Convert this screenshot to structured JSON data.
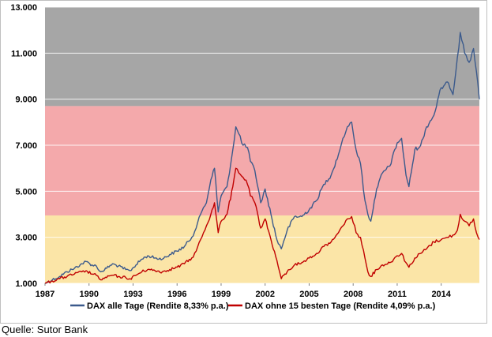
{
  "source_note": "Quelle: Sutor Bank",
  "colors": {
    "band_top": "#a6a6a6",
    "band_middle": "#f4a9ab",
    "band_bottom": "#fbe5a7",
    "series_all_days": "#3b5a8c",
    "series_without_best": "#c00000",
    "gridline": "#ffffff"
  },
  "chart_data": {
    "type": "line",
    "title": "",
    "xlabel": "",
    "ylabel": "",
    "xlim": [
      1987,
      2016.6
    ],
    "ylim": [
      1000,
      13000
    ],
    "x_ticks": [
      "1987",
      "1990",
      "1993",
      "1996",
      "1999",
      "2002",
      "2005",
      "2008",
      "2011",
      "2014"
    ],
    "y_ticks": [
      "1.000",
      "3.000",
      "5.000",
      "7.000",
      "9.000",
      "11.000",
      "13.000"
    ],
    "background_bands": [
      {
        "from": 8700,
        "to": 13000,
        "color": "#a6a6a6"
      },
      {
        "from": 3950,
        "to": 8700,
        "color": "#f4a9ab"
      },
      {
        "from": 1000,
        "to": 3950,
        "color": "#fbe5a7"
      }
    ],
    "grid": true,
    "legend_position": "bottom",
    "series": [
      {
        "name": "DAX alle Tage (Rendite 8,33% p.a.)",
        "color": "#3b5a8c",
        "x": [
          1987.0,
          1987.5,
          1988.0,
          1988.5,
          1989.0,
          1989.5,
          1989.8,
          1990.2,
          1990.5,
          1990.8,
          1991.2,
          1991.6,
          1992.0,
          1992.5,
          1992.8,
          1993.2,
          1993.6,
          1994.0,
          1994.5,
          1995.0,
          1995.5,
          1996.0,
          1996.5,
          1997.0,
          1997.3,
          1997.6,
          1997.8,
          1998.0,
          1998.3,
          1998.55,
          1998.8,
          1999.0,
          1999.4,
          1999.8,
          2000.0,
          2000.2,
          2000.5,
          2000.8,
          2001.0,
          2001.3,
          2001.7,
          2002.0,
          2002.4,
          2002.8,
          2003.1,
          2003.5,
          2004.0,
          2004.5,
          2005.0,
          2005.5,
          2006.0,
          2006.5,
          2007.0,
          2007.3,
          2007.6,
          2007.9,
          2008.2,
          2008.5,
          2008.8,
          2009.0,
          2009.2,
          2009.6,
          2010.0,
          2010.5,
          2011.0,
          2011.3,
          2011.6,
          2011.8,
          2012.2,
          2012.6,
          2013.0,
          2013.5,
          2014.0,
          2014.5,
          2014.8,
          2015.1,
          2015.3,
          2015.6,
          2015.9,
          2016.2,
          2016.4,
          2016.6
        ],
        "y": [
          1000,
          1150,
          1300,
          1500,
          1650,
          1850,
          1950,
          1800,
          1750,
          1500,
          1650,
          1850,
          1750,
          1600,
          1550,
          1800,
          2050,
          2200,
          2100,
          2050,
          2250,
          2400,
          2600,
          3000,
          3400,
          4000,
          4300,
          4500,
          5500,
          6000,
          4100,
          4800,
          5200,
          6800,
          7800,
          7500,
          7000,
          6900,
          6300,
          5900,
          4500,
          5100,
          4000,
          2900,
          2500,
          3300,
          3900,
          3900,
          4200,
          4600,
          5300,
          5700,
          6600,
          7300,
          7800,
          8000,
          6800,
          6200,
          4600,
          4000,
          3700,
          5100,
          5800,
          6100,
          7100,
          7300,
          5700,
          5200,
          6800,
          7000,
          7800,
          8300,
          9500,
          9700,
          9200,
          10800,
          11900,
          11000,
          10600,
          11200,
          10200,
          9000
        ]
      },
      {
        "name": "DAX ohne 15 besten Tage (Rendite 4,09% p.a.)",
        "color": "#c00000",
        "x": [
          1987.0,
          1987.5,
          1988.0,
          1988.5,
          1989.0,
          1989.5,
          1989.8,
          1990.2,
          1990.5,
          1990.8,
          1991.2,
          1991.6,
          1992.0,
          1992.5,
          1992.8,
          1993.2,
          1993.6,
          1994.0,
          1994.5,
          1995.0,
          1995.5,
          1996.0,
          1996.5,
          1997.0,
          1997.3,
          1997.6,
          1997.8,
          1998.0,
          1998.3,
          1998.55,
          1998.8,
          1999.0,
          1999.4,
          1999.8,
          2000.0,
          2000.2,
          2000.5,
          2000.8,
          2001.0,
          2001.3,
          2001.7,
          2002.0,
          2002.4,
          2002.8,
          2003.1,
          2003.5,
          2004.0,
          2004.5,
          2005.0,
          2005.5,
          2006.0,
          2006.5,
          2007.0,
          2007.3,
          2007.6,
          2007.9,
          2008.2,
          2008.5,
          2008.8,
          2009.0,
          2009.2,
          2009.6,
          2010.0,
          2010.5,
          2011.0,
          2011.3,
          2011.6,
          2011.8,
          2012.2,
          2012.6,
          2013.0,
          2013.5,
          2014.0,
          2014.5,
          2014.8,
          2015.1,
          2015.3,
          2015.6,
          2015.9,
          2016.2,
          2016.4,
          2016.6
        ],
        "y": [
          1000,
          1100,
          1200,
          1300,
          1400,
          1500,
          1550,
          1400,
          1350,
          1150,
          1250,
          1350,
          1300,
          1250,
          1200,
          1350,
          1500,
          1600,
          1550,
          1500,
          1600,
          1700,
          1850,
          2100,
          2400,
          2900,
          3200,
          3500,
          4000,
          4500,
          3200,
          3700,
          4000,
          5200,
          6000,
          5800,
          5600,
          5300,
          4800,
          4500,
          3400,
          3800,
          2900,
          2000,
          1200,
          1500,
          1800,
          1900,
          2100,
          2300,
          2600,
          2800,
          3200,
          3500,
          3800,
          3900,
          3200,
          3000,
          2100,
          1500,
          1300,
          1600,
          1800,
          1900,
          2200,
          2300,
          1900,
          1700,
          2100,
          2300,
          2500,
          2800,
          2900,
          3000,
          3100,
          3300,
          4000,
          3700,
          3500,
          3800,
          3200,
          2900
        ]
      }
    ]
  }
}
